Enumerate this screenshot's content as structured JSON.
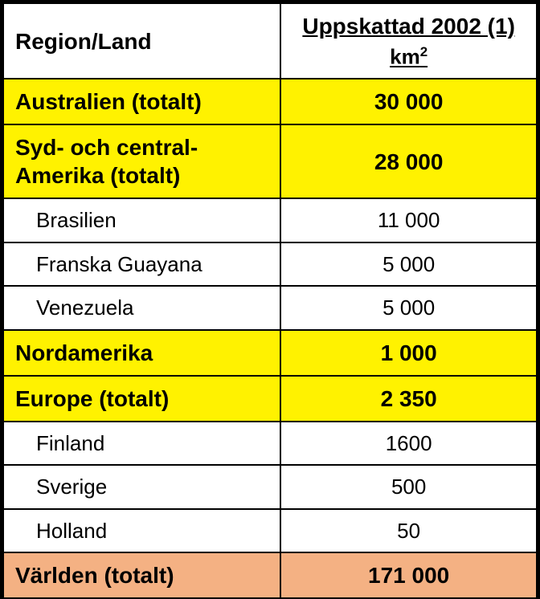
{
  "table": {
    "header": {
      "region": "Region/Land",
      "value_line1": "Uppskattad 2002 (1)",
      "value_unit_prefix": "km",
      "value_unit_sup": "2"
    },
    "rows": [
      {
        "region": "Australien (totalt)",
        "value": "30 000",
        "style": "yellow",
        "bold": true,
        "indent": false
      },
      {
        "region": "Syd- och central-Amerika (totalt)",
        "value": "28 000",
        "style": "yellow",
        "bold": true,
        "indent": false
      },
      {
        "region": "Brasilien",
        "value": "11 000",
        "style": "white",
        "bold": false,
        "indent": true
      },
      {
        "region": "Franska Guayana",
        "value": "5 000",
        "style": "white",
        "bold": false,
        "indent": true
      },
      {
        "region": "Venezuela",
        "value": "5 000",
        "style": "white",
        "bold": false,
        "indent": true
      },
      {
        "region": "Nordamerika",
        "value": "1 000",
        "style": "yellow",
        "bold": true,
        "indent": false
      },
      {
        "region": "Europe (totalt)",
        "value": "2 350",
        "style": "yellow",
        "bold": true,
        "indent": false
      },
      {
        "region": "Finland",
        "value": "1600",
        "style": "white",
        "bold": false,
        "indent": true
      },
      {
        "region": "Sverige",
        "value": "500",
        "style": "white",
        "bold": false,
        "indent": true
      },
      {
        "region": "Holland",
        "value": "50",
        "style": "white",
        "bold": false,
        "indent": true
      },
      {
        "region": "Världen (totalt)",
        "value": "171 000",
        "style": "orange",
        "bold": true,
        "indent": false
      }
    ],
    "colors": {
      "yellow": "#fff200",
      "orange": "#f4b183",
      "white": "#ffffff",
      "border": "#000000"
    }
  }
}
